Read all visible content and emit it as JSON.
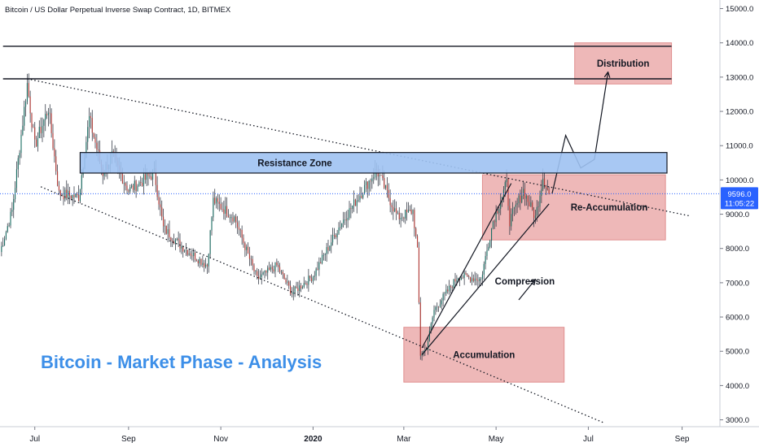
{
  "chart_data": {
    "type": "candlestick",
    "title": "Bitcoin / US Dollar Perpetual Inverse Swap Contract, 1D, BITMEX",
    "headline": "Bitcoin - Market Phase - Analysis",
    "y_axis": {
      "ticks": [
        3000,
        4000,
        5000,
        6000,
        7000,
        8000,
        9000,
        10000,
        11000,
        12000,
        13000,
        14000,
        15000
      ],
      "tick_labels": [
        "3000.0",
        "4000.0",
        "5000.0",
        "6000.0",
        "7000.0",
        "8000.0",
        "9000.0",
        "10000.0",
        "11000.0",
        "12000.0",
        "13000.0",
        "14000.0",
        "15000.0"
      ],
      "range": [
        2800,
        15250
      ]
    },
    "x_axis": {
      "labels": [
        {
          "text": "Jul",
          "date": "2019-07-01"
        },
        {
          "text": "Sep",
          "date": "2019-09-01"
        },
        {
          "text": "Nov",
          "date": "2019-11-01"
        },
        {
          "text": "2020",
          "date": "2020-01-01"
        },
        {
          "text": "Mar",
          "date": "2020-03-01"
        },
        {
          "text": "May",
          "date": "2020-05-01"
        },
        {
          "text": "Jul",
          "date": "2020-07-01"
        },
        {
          "text": "Sep",
          "date": "2020-09-01"
        }
      ],
      "range": [
        "2019-06-08",
        "2020-09-26"
      ]
    },
    "last_price": {
      "value": 9596.0,
      "label": "9596.0",
      "countdown": "11:05:22"
    },
    "series_anchors": [
      {
        "date": "2019-06-08",
        "close": 7900
      },
      {
        "date": "2019-06-16",
        "close": 9100
      },
      {
        "date": "2019-06-26",
        "close": 12800
      },
      {
        "date": "2019-07-01",
        "close": 11000
      },
      {
        "date": "2019-07-10",
        "close": 12100
      },
      {
        "date": "2019-07-17",
        "close": 9600
      },
      {
        "date": "2019-07-30",
        "close": 9500
      },
      {
        "date": "2019-08-06",
        "close": 11800
      },
      {
        "date": "2019-08-15",
        "close": 10200
      },
      {
        "date": "2019-08-21",
        "close": 10700
      },
      {
        "date": "2019-09-01",
        "close": 9700
      },
      {
        "date": "2019-09-18",
        "close": 10200
      },
      {
        "date": "2019-09-24",
        "close": 8600
      },
      {
        "date": "2019-10-05",
        "close": 8100
      },
      {
        "date": "2019-10-23",
        "close": 7500
      },
      {
        "date": "2019-10-27",
        "close": 9400
      },
      {
        "date": "2019-11-10",
        "close": 8900
      },
      {
        "date": "2019-11-25",
        "close": 7100
      },
      {
        "date": "2019-12-08",
        "close": 7500
      },
      {
        "date": "2019-12-18",
        "close": 6700
      },
      {
        "date": "2020-01-01",
        "close": 7200
      },
      {
        "date": "2020-01-19",
        "close": 8700
      },
      {
        "date": "2020-02-12",
        "close": 10300
      },
      {
        "date": "2020-02-26",
        "close": 8900
      },
      {
        "date": "2020-03-07",
        "close": 9100
      },
      {
        "date": "2020-03-10",
        "close": 7900
      },
      {
        "date": "2020-03-12",
        "close": 4900
      },
      {
        "date": "2020-03-16",
        "close": 5100
      },
      {
        "date": "2020-03-21",
        "close": 6200
      },
      {
        "date": "2020-04-06",
        "close": 7200
      },
      {
        "date": "2020-04-21",
        "close": 7100
      },
      {
        "date": "2020-04-29",
        "close": 8800
      },
      {
        "date": "2020-05-08",
        "close": 9900
      },
      {
        "date": "2020-05-10",
        "close": 8800
      },
      {
        "date": "2020-05-19",
        "close": 9700
      },
      {
        "date": "2020-05-27",
        "close": 8900
      },
      {
        "date": "2020-06-01",
        "close": 10100
      },
      {
        "date": "2020-06-05",
        "close": 9596
      }
    ],
    "horizontal_lines": [
      {
        "value": 13900,
        "x_start": "2019-06-10",
        "x_end": "2020-08-25"
      },
      {
        "value": 12950,
        "x_start": "2019-06-10",
        "x_end": "2020-08-25"
      }
    ],
    "trendlines": [
      {
        "style": "dotted",
        "from": {
          "date": "2019-06-26",
          "value": 12950
        },
        "to": {
          "date": "2020-09-06",
          "value": 8950
        }
      },
      {
        "style": "dotted",
        "from": {
          "date": "2019-07-05",
          "value": 9800
        },
        "to": {
          "date": "2020-07-12",
          "value": 2900
        }
      }
    ],
    "zones": [
      {
        "label": "Resistance Zone",
        "style": "blue",
        "x_start": "2019-07-31",
        "x_end": "2020-08-22",
        "top": 10800,
        "bottom": 10200
      },
      {
        "label": "Distribution",
        "style": "red",
        "x_start": "2020-06-22",
        "x_end": "2020-08-25",
        "top": 14000,
        "bottom": 12800
      },
      {
        "label": "Re-Accumulation",
        "style": "red",
        "x_start": "2020-04-22",
        "x_end": "2020-08-21",
        "top": 10150,
        "bottom": 8250
      },
      {
        "label": "Accumulation",
        "style": "red",
        "x_start": "2020-03-01",
        "x_end": "2020-06-15",
        "top": 5700,
        "bottom": 4100
      }
    ],
    "annotations": [
      {
        "text": "Compression",
        "date": "2020-05-20",
        "value": 6950
      }
    ],
    "channel_lines": [
      {
        "from": {
          "date": "2020-03-13",
          "value": 5100
        },
        "to": {
          "date": "2020-05-11",
          "value": 9900
        }
      },
      {
        "from": {
          "date": "2020-03-13",
          "value": 4900
        },
        "to": {
          "date": "2020-06-05",
          "value": 9300
        }
      }
    ],
    "arrows": [
      {
        "points": [
          {
            "date": "2020-05-16",
            "value": 6500
          },
          {
            "date": "2020-05-27",
            "value": 7100
          }
        ]
      },
      {
        "points": [
          {
            "date": "2020-06-07",
            "value": 9600
          },
          {
            "date": "2020-06-16",
            "value": 11300
          },
          {
            "date": "2020-06-26",
            "value": 10350
          },
          {
            "date": "2020-07-05",
            "value": 10600
          },
          {
            "date": "2020-07-14",
            "value": 13150
          }
        ]
      }
    ],
    "colors": {
      "up": "#26a69a",
      "down": "#ef5350",
      "candle_up_body": "#1c6e64",
      "candle_down_body": "#b23a36",
      "resistance_zone": "#9ec2f2",
      "red_zone": "#e8a0a0",
      "headline": "#3d8fe8",
      "price_label_bg": "#2962ff"
    },
    "grid": false
  }
}
